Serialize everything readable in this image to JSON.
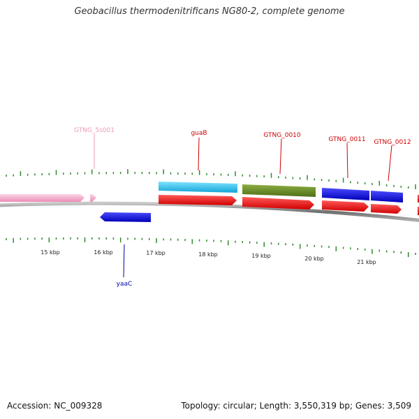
{
  "title": "Geobacillus thermodenitrificans NG80-2, complete genome",
  "footer": {
    "accession": "Accession: NC_009328",
    "summary": "Topology: circular; Length: 3,550,319 bp; Genes: 3,509"
  },
  "colors": {
    "backbone": "#7a7a7a",
    "tick": "#2e8b2e",
    "pink_gene": "#f4a6c6",
    "cyan_gene": "#23c3f0",
    "olive_gene": "#6b8e23",
    "blue_gene": "#1010e0",
    "red_gene": "#ee1111",
    "red_label": "#cc0000",
    "blue_label": "#0000aa",
    "pink_label": "#ee99bb"
  },
  "scale_labels": [
    "15 kbp",
    "16 kbp",
    "17 kbp",
    "18 kbp",
    "19 kbp",
    "20 kbp",
    "21 kbp"
  ],
  "gene_labels": {
    "gtng_5s001": "GTNG_5s001",
    "guab": "guaB",
    "gtng_0010": "GTNG_0010",
    "gtng_0011": "GTNG_0011",
    "gtng_0012": "GTNG_0012",
    "yaac": "yaaC"
  }
}
